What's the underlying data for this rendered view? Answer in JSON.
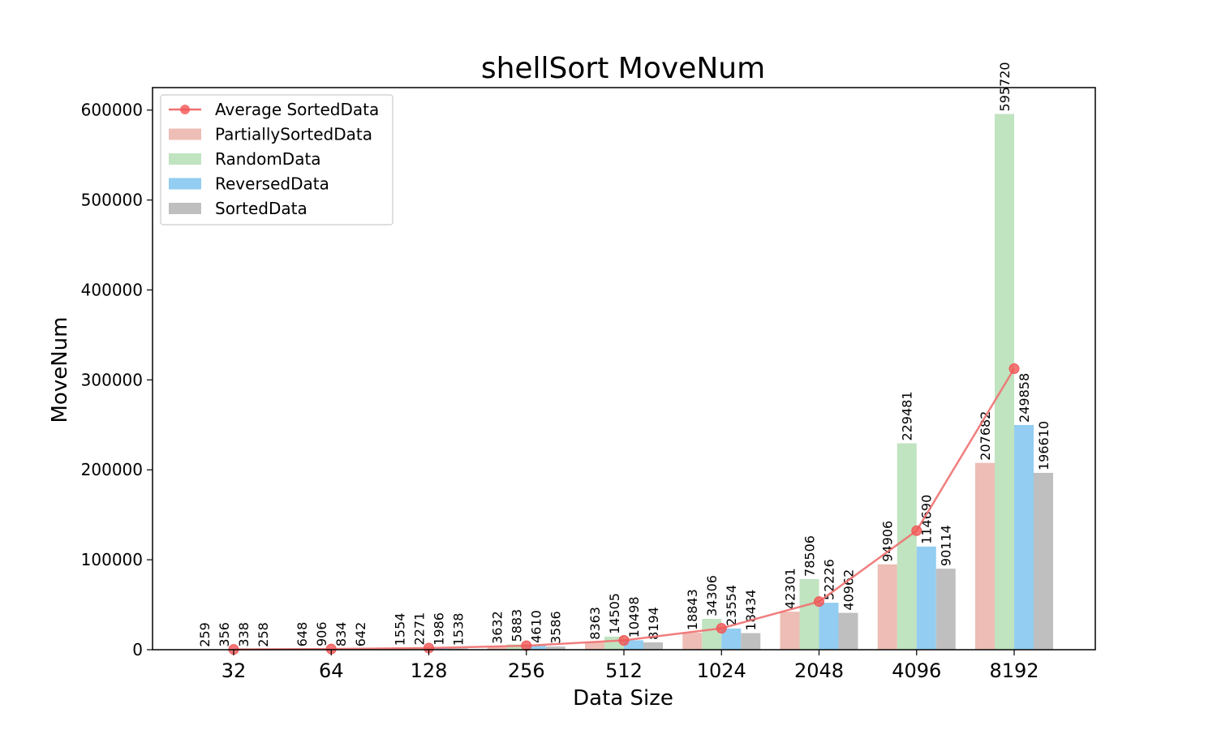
{
  "chart_data": {
    "type": "bar",
    "title": "shellSort MoveNum",
    "xlabel": "Data Size",
    "ylabel": "MoveNum",
    "categories": [
      "32",
      "64",
      "128",
      "256",
      "512",
      "1024",
      "2048",
      "4096",
      "8192"
    ],
    "ylim": [
      0,
      625000
    ],
    "yticks": [
      "0",
      "100000",
      "200000",
      "300000",
      "400000",
      "500000",
      "600000"
    ],
    "grid": false,
    "legend_position": "top-left",
    "series": [
      {
        "name": "PartiallySortedData",
        "color": "#eebdb5",
        "values": [
          259,
          648,
          1554,
          3632,
          8363,
          18843,
          42301,
          94906,
          207682
        ],
        "labels": [
          "259",
          "648",
          "1554",
          "3632",
          "8363",
          "18843",
          "42301",
          "94906",
          "207682"
        ]
      },
      {
        "name": "RandomData",
        "color": "#c0e3c0",
        "values": [
          356,
          906,
          2271,
          5883,
          14505,
          34306,
          78506,
          229481,
          595720
        ],
        "labels": [
          "356",
          "906",
          "2271",
          "5883",
          "14505",
          "34306",
          "78506",
          "229481",
          "595720"
        ]
      },
      {
        "name": "ReversedData",
        "color": "#93cdf1",
        "values": [
          338,
          834,
          1986,
          4610,
          10498,
          23554,
          52226,
          114690,
          249858
        ],
        "labels": [
          "338",
          "834",
          "1986",
          "4610",
          "10498",
          "23554",
          "52226",
          "114690",
          "249858"
        ]
      },
      {
        "name": "SortedData",
        "color": "#bfbfbf",
        "values": [
          258,
          642,
          1538,
          3586,
          8194,
          18434,
          40962,
          90114,
          196610
        ],
        "labels": [
          "258",
          "642",
          "1538",
          "3586",
          "8194",
          "18434",
          "40962",
          "90114",
          "196610"
        ]
      }
    ],
    "line_series": {
      "name": "Average SortedData",
      "color": "#f07070",
      "values": [
        303,
        758,
        1837,
        4428,
        10390,
        23784,
        53499,
        132298,
        312468
      ]
    }
  }
}
